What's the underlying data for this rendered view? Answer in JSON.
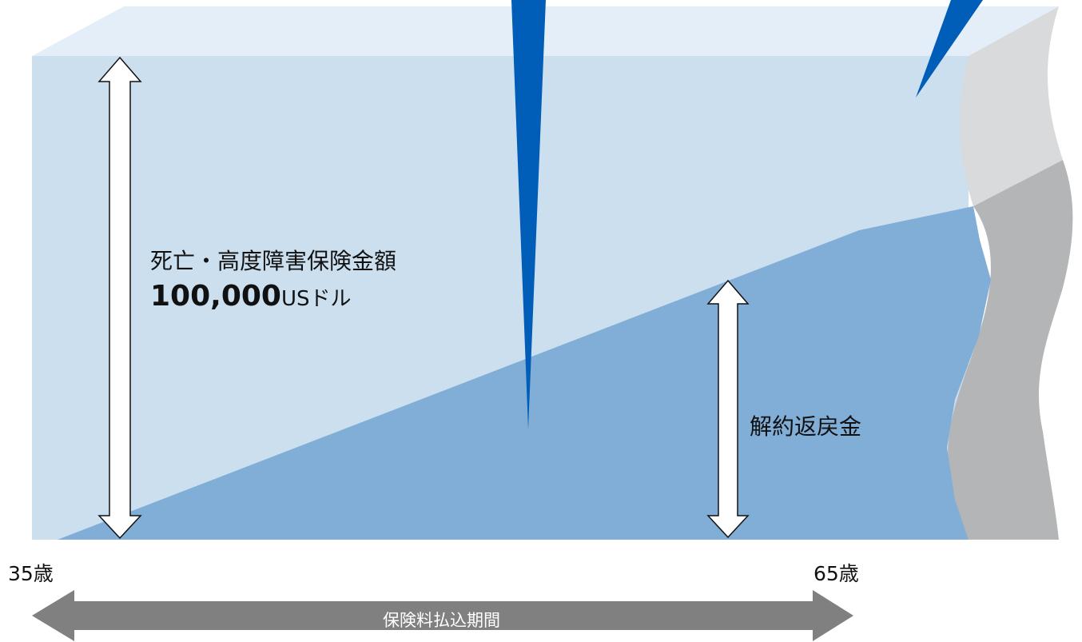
{
  "coverage": {
    "label": "死亡・高度障害保険金額",
    "amount": "100,000",
    "unit": "USドル"
  },
  "surrender_value": {
    "label": "解約返戻金"
  },
  "timeline": {
    "start_age": "35歳",
    "end_age": "65歳",
    "premium_period": "保険料払込期間"
  },
  "colors": {
    "block_front": "#cbdfef",
    "block_top": "#e3eef8",
    "surrender_area": "#80aed6",
    "accent_blue": "#005eb8",
    "continuation_light": "#d9dadb",
    "continuation_dark": "#b4b5b6",
    "period_arrow": "#808080"
  }
}
